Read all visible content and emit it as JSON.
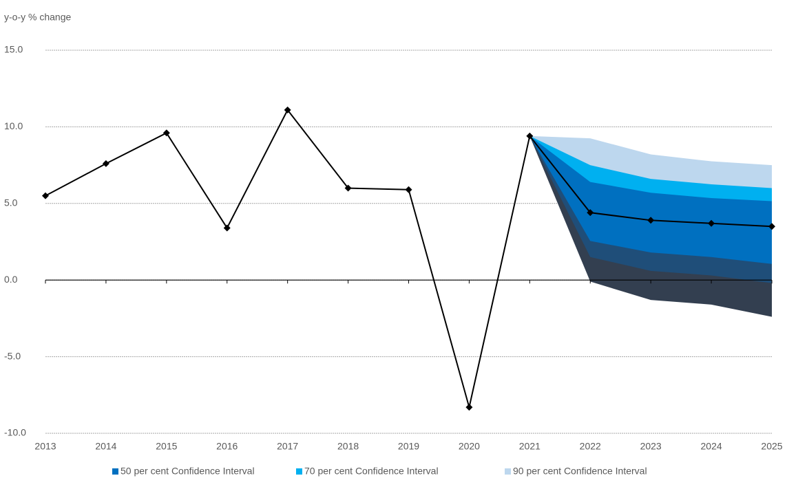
{
  "chart_data": {
    "type": "fan",
    "y_axis_label": "y-o-y % change",
    "categories": [
      "2013",
      "2014",
      "2015",
      "2016",
      "2017",
      "2018",
      "2019",
      "2020",
      "2021",
      "2022",
      "2023",
      "2024",
      "2025"
    ],
    "ylim": [
      -10,
      15
    ],
    "yticks": [
      {
        "value": -10,
        "label": "-10.0"
      },
      {
        "value": -5,
        "label": "-5.0"
      },
      {
        "value": 0,
        "label": "0.0"
      },
      {
        "value": 5,
        "label": "5.0"
      },
      {
        "value": 10,
        "label": "10.0"
      },
      {
        "value": 15,
        "label": "15.0"
      }
    ],
    "grid": true,
    "line": {
      "color": "#000000",
      "values": [
        5.5,
        7.6,
        9.6,
        3.4,
        11.1,
        6.0,
        5.9,
        -8.3,
        9.4,
        4.4,
        3.9,
        3.7,
        3.5
      ]
    },
    "bands": [
      {
        "name": "90 per cent Confidence Interval",
        "color": "#bdd7ee",
        "lower_color": "#333f50",
        "upper": [
          null,
          null,
          null,
          null,
          null,
          null,
          null,
          null,
          9.4,
          9.25,
          8.2,
          7.75,
          7.5
        ],
        "lower": [
          null,
          null,
          null,
          null,
          null,
          null,
          null,
          null,
          9.4,
          -0.1,
          -1.3,
          -1.6,
          -2.4
        ]
      },
      {
        "name": "70 per cent Confidence Interval",
        "color": "#00b0f0",
        "lower_color": "#1f4e79",
        "upper": [
          null,
          null,
          null,
          null,
          null,
          null,
          null,
          null,
          9.4,
          7.5,
          6.6,
          6.25,
          6.0
        ],
        "lower": [
          null,
          null,
          null,
          null,
          null,
          null,
          null,
          null,
          9.4,
          1.5,
          0.6,
          0.3,
          -0.2
        ]
      },
      {
        "name": "50 per cent Confidence Interval",
        "color": "#0070c0",
        "lower_color": "#0070c0",
        "upper": [
          null,
          null,
          null,
          null,
          null,
          null,
          null,
          null,
          9.4,
          6.4,
          5.7,
          5.35,
          5.15
        ],
        "lower": [
          null,
          null,
          null,
          null,
          null,
          null,
          null,
          null,
          9.4,
          2.55,
          1.8,
          1.5,
          1.05
        ]
      }
    ]
  }
}
